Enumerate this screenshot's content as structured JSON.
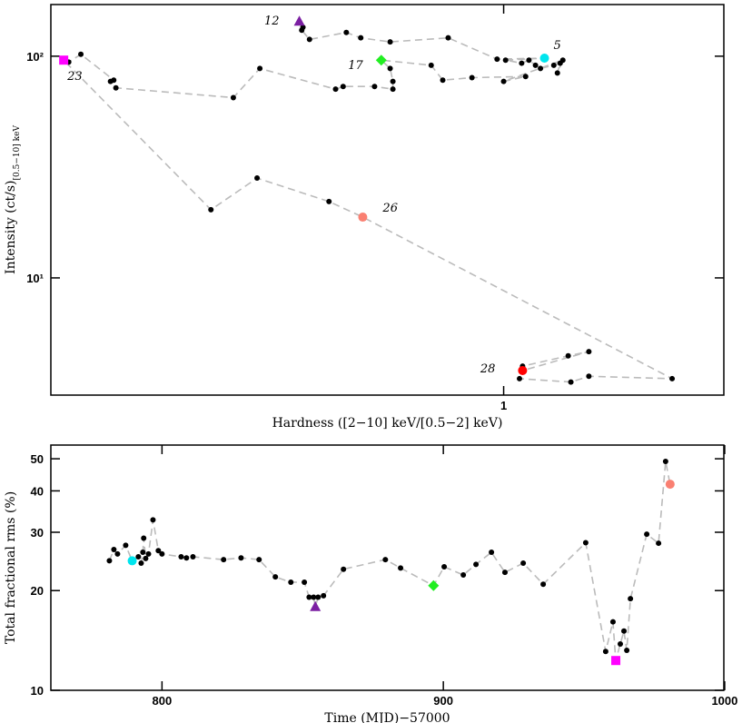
{
  "chart_data": [
    {
      "type": "scatter",
      "xlog": true,
      "ylog": true,
      "xlabel": "Hardness ([2−10] keV/[0.5−2] keV)",
      "ylabel": "Intensity (ct/s)",
      "ylabel_sub": "[0.5−10] keV",
      "xlim": [
        0.248,
        1.97
      ],
      "ylim": [
        2.96,
        171
      ],
      "xticks": [
        1
      ],
      "yticks": [
        {
          "value": 10,
          "label": "10¹"
        },
        {
          "value": 100,
          "label": "10²"
        }
      ],
      "color": "#000000",
      "line_color": "#bbbbbb",
      "x": [
        0.533,
        0.539,
        0.537,
        0.55,
        0.616,
        0.644,
        0.705,
        0.843,
        0.98,
        1.134,
        1.006,
        1.057,
        1.081,
        1.103,
        1.12,
        1.167,
        1.19,
        1.18,
        1.2,
        1.0,
        1.07,
        0.907,
        0.829,
        0.8,
        0.686,
        0.705,
        0.711,
        0.711,
        0.672,
        0.61,
        0.596,
        0.472,
        0.435,
        0.303,
        0.298,
        0.301,
        0.272,
        0.262,
        0.258,
        0.406,
        0.468,
        0.584,
        0.648,
        1.68,
        1.3,
        1.23,
        1.05,
        1.06,
        1.22,
        1.3,
        1.06
      ],
      "y": [
        144,
        135,
        131,
        119,
        128,
        121,
        116,
        121,
        97,
        98,
        96,
        93,
        96,
        91,
        88,
        91,
        93,
        84,
        96,
        77,
        81,
        80,
        78,
        91,
        96,
        88,
        77,
        71,
        73,
        73,
        71,
        88,
        65,
        72,
        77,
        78,
        102,
        94,
        96,
        20.3,
        28.2,
        22.1,
        18.8,
        3.51,
        3.6,
        3.39,
        3.51,
        4.0,
        4.45,
        4.65,
        3.82
      ],
      "markers": [
        {
          "shape": "triangle",
          "color": "#7b1fa2"
        },
        null,
        null,
        null,
        null,
        null,
        null,
        null,
        null,
        {
          "shape": "circle",
          "color": "#00e5ee"
        },
        null,
        null,
        null,
        null,
        null,
        null,
        null,
        null,
        null,
        null,
        null,
        null,
        null,
        null,
        {
          "shape": "diamond",
          "color": "#22ee22"
        },
        null,
        null,
        null,
        null,
        null,
        null,
        null,
        null,
        null,
        null,
        null,
        null,
        null,
        {
          "shape": "square",
          "color": "#ff00ff"
        },
        null,
        null,
        null,
        {
          "shape": "circle",
          "color": "#fa8072"
        },
        null,
        null,
        null,
        null,
        null,
        null,
        null,
        {
          "shape": "circle",
          "color": "#ff0000"
        }
      ],
      "point_labels": [
        "12",
        null,
        null,
        null,
        null,
        null,
        null,
        null,
        null,
        "5",
        null,
        null,
        null,
        null,
        null,
        null,
        null,
        null,
        null,
        null,
        null,
        null,
        null,
        null,
        "17",
        null,
        null,
        null,
        null,
        null,
        null,
        null,
        null,
        null,
        null,
        null,
        null,
        null,
        "23",
        null,
        null,
        null,
        "26",
        null,
        null,
        null,
        null,
        null,
        null,
        null,
        "28"
      ]
    },
    {
      "type": "scatter",
      "xlog": false,
      "ylog": true,
      "xlabel": "Time (MJD)−57000",
      "ylabel": "Total fractional rms (%)",
      "xlim": [
        760.5,
        999.7
      ],
      "ylim": [
        10,
        55
      ],
      "xticks": [
        800,
        900,
        1000
      ],
      "yticks": [
        10,
        20,
        30,
        40,
        50
      ],
      "color": "#000000",
      "line_color": "#bbbbbb",
      "x": [
        781.3,
        782.9,
        784.2,
        787.1,
        789.4,
        791.6,
        792.6,
        793.2,
        793.5,
        794.2,
        795.2,
        796.8,
        798.7,
        800.0,
        806.8,
        808.7,
        811.0,
        821.9,
        828.1,
        834.5,
        840.3,
        845.8,
        850.6,
        852.3,
        853.9,
        854.5,
        855.5,
        857.4,
        864.5,
        879.4,
        884.8,
        896.5,
        900.3,
        907.1,
        911.6,
        917.1,
        921.9,
        928.4,
        935.5,
        950.6,
        957.7,
        960.3,
        961.3,
        962.9,
        964.2,
        965.2,
        966.5,
        972.3,
        976.5,
        979.0,
        980.6
      ],
      "y": [
        24.6,
        26.6,
        25.8,
        27.4,
        24.6,
        25.3,
        24.2,
        26.1,
        28.8,
        25.0,
        25.8,
        32.7,
        26.4,
        25.8,
        25.3,
        25.1,
        25.3,
        24.8,
        25.1,
        24.8,
        22.0,
        21.2,
        21.2,
        19.1,
        19.1,
        17.9,
        19.1,
        19.3,
        23.2,
        24.8,
        23.4,
        20.7,
        23.6,
        22.3,
        24.0,
        26.1,
        22.7,
        24.2,
        20.9,
        27.9,
        13.1,
        16.1,
        12.3,
        13.8,
        15.1,
        13.2,
        18.9,
        29.6,
        27.8,
        49.1,
        41.9
      ],
      "markers": [
        null,
        null,
        null,
        null,
        {
          "shape": "circle",
          "color": "#00e5ee"
        },
        null,
        null,
        null,
        null,
        null,
        null,
        null,
        null,
        null,
        null,
        null,
        null,
        null,
        null,
        null,
        null,
        null,
        null,
        null,
        null,
        {
          "shape": "triangle",
          "color": "#7b1fa2"
        },
        null,
        null,
        null,
        null,
        null,
        {
          "shape": "diamond",
          "color": "#22ee22"
        },
        null,
        null,
        null,
        null,
        null,
        null,
        null,
        null,
        null,
        null,
        {
          "shape": "square",
          "color": "#ff00ff"
        },
        null,
        null,
        null,
        null,
        null,
        null,
        null,
        {
          "shape": "circle",
          "color": "#fa8072"
        }
      ]
    }
  ]
}
